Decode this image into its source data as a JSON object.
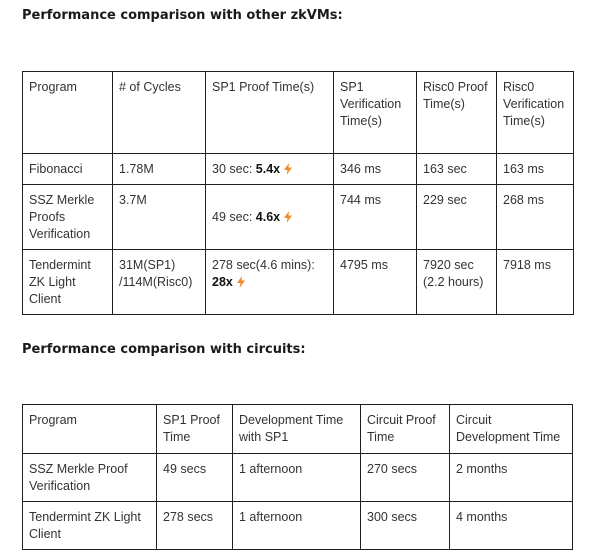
{
  "section1": {
    "heading": "Performance comparison with other zkVMs:",
    "headers": [
      "Program",
      "# of Cycles",
      "SP1 Proof Time(s)",
      "SP1 Verification Time(s)",
      "Risc0 Proof Time(s)",
      "Risc0 Verification Time(s)"
    ],
    "rows": [
      {
        "program": "Fibonacci",
        "cycles": "1.78M",
        "sp1_proof_text": "30 sec:",
        "sp1_proof_speedup": "5.4x",
        "sp1_verify": "346 ms",
        "risc0_proof": "163 sec",
        "risc0_verify": "163 ms"
      },
      {
        "program": "SSZ Merkle Proofs Verification",
        "cycles": "3.7M",
        "sp1_proof_text": "49 sec:",
        "sp1_proof_speedup": "4.6x",
        "sp1_verify": "744 ms",
        "risc0_proof": "229 sec",
        "risc0_verify": "268 ms"
      },
      {
        "program": "Tendermint ZK Light Client",
        "cycles": "31M(SP1) /114M(Risc0)",
        "sp1_proof_text": "278 sec(4.6 mins):",
        "sp1_proof_speedup": "28x",
        "sp1_verify": "4795 ms",
        "risc0_proof": "7920 sec (2.2 hours)",
        "risc0_verify": "7918 ms"
      }
    ]
  },
  "section2": {
    "heading": "Performance comparison with circuits:",
    "headers": [
      "Program",
      "SP1 Proof Time",
      "Development Time with SP1",
      "Circuit Proof Time",
      "Circuit Development Time"
    ],
    "rows": [
      {
        "program": "SSZ Merkle Proof Verification",
        "sp1_proof": "49 secs",
        "dev_time_sp1": "1 afternoon",
        "circuit_proof": "270 secs",
        "circuit_dev": "2 months"
      },
      {
        "program": "Tendermint ZK Light Client",
        "sp1_proof": "278 secs",
        "dev_time_sp1": "1 afternoon",
        "circuit_proof": "300 secs",
        "circuit_dev": "4 months"
      }
    ]
  },
  "icons": {
    "speedup": "lightning-bolt-icon",
    "speedup_color": "#f28c28"
  }
}
